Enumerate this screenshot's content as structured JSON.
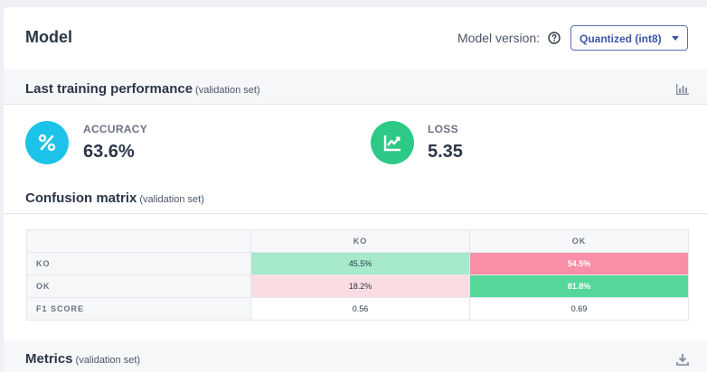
{
  "header": {
    "title": "Model",
    "model_version_label": "Model version:",
    "model_version_value": "Quantized (int8)"
  },
  "performance": {
    "title": "Last training performance",
    "subtitle": "(validation set)",
    "accuracy": {
      "label": "ACCURACY",
      "value": "63.6%",
      "icon": "percent-icon",
      "color": "#1cc3e8"
    },
    "loss": {
      "label": "LOSS",
      "value": "5.35",
      "icon": "trend-chart-icon",
      "color": "#2ec987"
    }
  },
  "confusion_matrix": {
    "title": "Confusion matrix",
    "subtitle": "(validation set)",
    "columns": [
      "",
      "KO",
      "OK"
    ],
    "rows": [
      {
        "label": "KO",
        "values": [
          "45.5%",
          "54.5%"
        ]
      },
      {
        "label": "OK",
        "values": [
          "18.2%",
          "81.8%"
        ]
      },
      {
        "label": "F1 SCORE",
        "values": [
          "0.56",
          "0.69"
        ]
      }
    ]
  },
  "metrics": {
    "title": "Metrics",
    "subtitle": "(validation set)"
  },
  "icons": [
    "help-circle-icon",
    "bar-chart-icon",
    "percent-icon",
    "trend-chart-icon",
    "download-icon",
    "chevron-down-icon"
  ]
}
